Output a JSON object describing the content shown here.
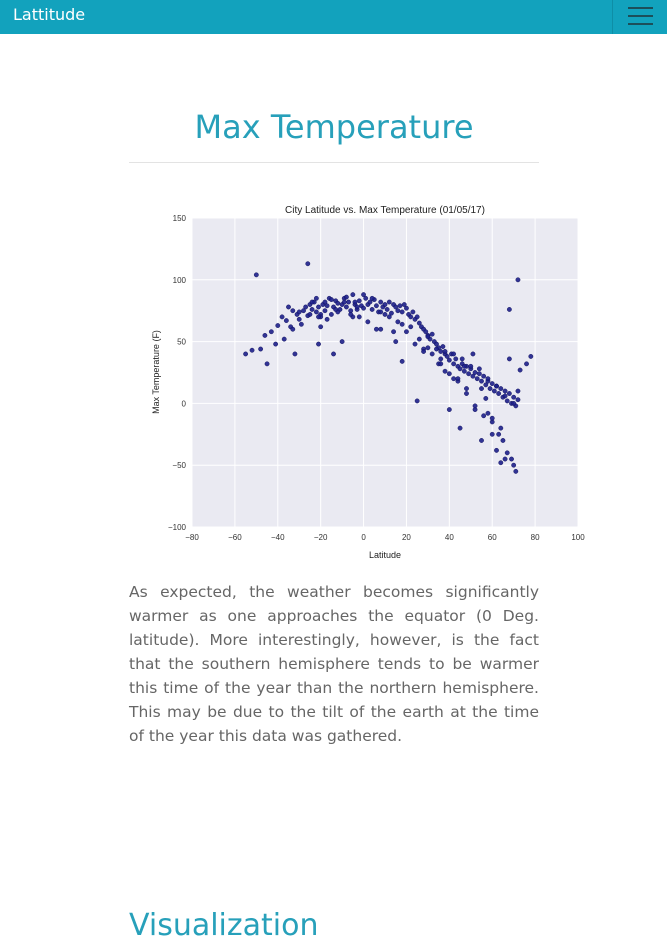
{
  "navbar": {
    "brand": "Lattitude",
    "menu_icon": "hamburger-menu-icon",
    "color": "#12a2bd"
  },
  "section": {
    "title": "Max Temperature",
    "description": "As expected, the weather becomes significantly warmer as one approaches the equator (0 Deg. latitude). More interestingly, however, is the fact that the southern hemisphere tends to be warmer this time of the year than the northern hemisphere. This may be due to the tilt of the earth at the time of the year this data was gathered."
  },
  "next_section": {
    "title": "Visualization"
  },
  "chart_data": {
    "type": "scatter",
    "title": "City Latitude vs. Max Temperature (01/05/17)",
    "xlabel": "Latitude",
    "ylabel": "Max Temperature (F)",
    "xlim": [
      -80,
      100
    ],
    "ylim": [
      -100,
      150
    ],
    "xticks": [
      -80,
      -60,
      -40,
      -20,
      0,
      20,
      40,
      60,
      80,
      100
    ],
    "yticks": [
      -100,
      -50,
      0,
      50,
      100,
      150
    ],
    "grid": true,
    "point_color": "#1d1f8a",
    "background_color": "#eaeaf2",
    "x": [
      -55,
      -52,
      -48,
      -46,
      -43,
      -40,
      -38,
      -36,
      -34,
      -33,
      -31,
      -30,
      -28,
      -27,
      -26,
      -25,
      -24,
      -23,
      -22,
      -21,
      -20,
      -19,
      -18,
      -17,
      -16,
      -15,
      -14,
      -13,
      -12,
      -11,
      -10,
      -9,
      -8,
      -7,
      -6,
      -5,
      -4,
      -3,
      -2,
      -1,
      0,
      1,
      2,
      3,
      4,
      5,
      6,
      7,
      8,
      9,
      10,
      11,
      12,
      13,
      14,
      15,
      16,
      17,
      18,
      19,
      20,
      21,
      22,
      23,
      24,
      25,
      26,
      27,
      28,
      29,
      30,
      31,
      32,
      33,
      34,
      35,
      36,
      37,
      38,
      39,
      40,
      41,
      42,
      43,
      44,
      45,
      46,
      47,
      48,
      49,
      50,
      51,
      52,
      53,
      54,
      55,
      56,
      57,
      58,
      59,
      60,
      61,
      62,
      63,
      64,
      65,
      66,
      67,
      68,
      69,
      70,
      71,
      72,
      -35,
      -30,
      -22,
      -20,
      -18,
      -15,
      -12,
      -8,
      -5,
      -3,
      2,
      6,
      10,
      14,
      18,
      22,
      26,
      30,
      34,
      38,
      42,
      46,
      50,
      54,
      58,
      62,
      66,
      70,
      -45,
      -41,
      -37,
      -33,
      -29,
      -25,
      -21,
      -17,
      -13,
      -9,
      -4,
      0,
      4,
      8,
      12,
      16,
      20,
      24,
      28,
      32,
      36,
      40,
      44,
      48,
      52,
      56,
      60,
      64,
      68,
      72,
      -50,
      -26,
      -24,
      -21,
      -10,
      30,
      35,
      38,
      42,
      47,
      51,
      55,
      57,
      60,
      63,
      65,
      67,
      69,
      70,
      71,
      72,
      73,
      76,
      78,
      -32,
      -20,
      -14,
      18,
      25,
      40,
      45,
      55,
      62,
      66,
      68,
      58,
      60,
      64,
      48,
      52,
      44,
      36,
      28,
      15,
      8,
      -2,
      -6
    ],
    "y": [
      40,
      43,
      44,
      55,
      58,
      63,
      70,
      67,
      62,
      75,
      72,
      68,
      75,
      78,
      71,
      80,
      76,
      82,
      74,
      78,
      72,
      80,
      75,
      79,
      85,
      72,
      78,
      83,
      81,
      76,
      80,
      85,
      78,
      82,
      75,
      88,
      80,
      76,
      83,
      79,
      77,
      85,
      80,
      82,
      76,
      84,
      79,
      74,
      82,
      78,
      80,
      76,
      82,
      73,
      80,
      78,
      75,
      79,
      74,
      80,
      77,
      72,
      70,
      74,
      68,
      70,
      65,
      62,
      60,
      58,
      55,
      52,
      56,
      50,
      48,
      45,
      42,
      46,
      40,
      38,
      35,
      40,
      32,
      36,
      30,
      28,
      32,
      26,
      30,
      24,
      28,
      22,
      25,
      20,
      24,
      18,
      22,
      15,
      18,
      12,
      16,
      10,
      14,
      8,
      12,
      5,
      10,
      2,
      8,
      0,
      5,
      -2,
      3,
      78,
      74,
      85,
      70,
      82,
      84,
      74,
      86,
      70,
      78,
      66,
      60,
      72,
      58,
      64,
      62,
      52,
      54,
      44,
      42,
      40,
      36,
      30,
      28,
      20,
      14,
      6,
      0,
      32,
      48,
      52,
      60,
      64,
      72,
      70,
      68,
      76,
      82,
      82,
      88,
      85,
      74,
      70,
      66,
      58,
      48,
      44,
      40,
      36,
      24,
      18,
      12,
      -5,
      -10,
      -15,
      -20,
      36,
      100,
      104,
      113,
      82,
      48,
      50,
      45,
      32,
      26,
      20,
      30,
      40,
      12,
      4,
      -12,
      -25,
      -30,
      -40,
      -45,
      -50,
      -55,
      10,
      27,
      32,
      38,
      40,
      62,
      40,
      34,
      2,
      -5,
      -20,
      -30,
      -38,
      -45,
      76,
      -8,
      -25,
      -48,
      8,
      -2,
      20,
      32,
      42,
      50,
      60,
      70,
      72
    ],
    "marker_size": 2.2
  }
}
